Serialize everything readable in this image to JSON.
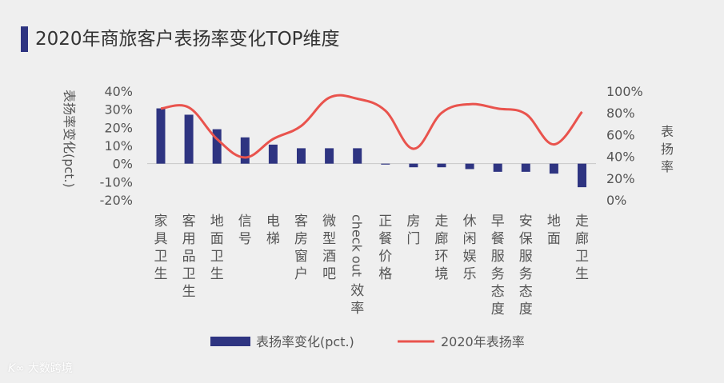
{
  "title": "2020年商旅客户表扬率变化TOP维度",
  "chart_data": {
    "type": "bar+line",
    "categories": [
      "家具卫生",
      "客用品卫生",
      "地面卫生",
      "信号",
      "电梯",
      "客房窗户",
      "微型酒吧",
      "check out效率",
      "正餐价格",
      "房门",
      "走廊环境",
      "休闲娱乐",
      "早餐服务态度",
      "安保服务态度",
      "地面",
      "走廊卫生"
    ],
    "series": [
      {
        "name": "表扬率变化(pct.)",
        "type": "bar",
        "axis": "left",
        "color": "#2e3481",
        "values": [
          30.5,
          27,
          19,
          14.5,
          10.5,
          8.5,
          8.5,
          8.5,
          -0.5,
          -2,
          -2,
          -3,
          -4.5,
          -4.5,
          -5.5,
          -13
        ]
      },
      {
        "name": "2020年表扬率",
        "type": "line",
        "axis": "right",
        "color": "#e9534d",
        "values": [
          84,
          85,
          56,
          39,
          56,
          68,
          94,
          93,
          82,
          47,
          80,
          88,
          84,
          79,
          51,
          81
        ]
      }
    ],
    "y_left": {
      "label": "表扬率变化(pct.)",
      "ylim": [
        -20,
        40
      ],
      "ticks": [
        "40%",
        "30%",
        "20%",
        "10%",
        "0%",
        "-10%",
        "-20%"
      ],
      "tick_values": [
        40,
        30,
        20,
        10,
        0,
        -10,
        -20
      ]
    },
    "y_right": {
      "label": "表扬率",
      "ylim": [
        0,
        100
      ],
      "ticks": [
        "100%",
        "80%",
        "60%",
        "40%",
        "20%",
        "0%"
      ],
      "tick_values": [
        100,
        80,
        60,
        40,
        20,
        0
      ]
    },
    "legend": {
      "position": "bottom",
      "bar_label": "表扬率变化(pct.)",
      "line_label": "2020年表扬率"
    }
  },
  "watermark": {
    "logo": "K∞",
    "text": "大数跨境"
  }
}
